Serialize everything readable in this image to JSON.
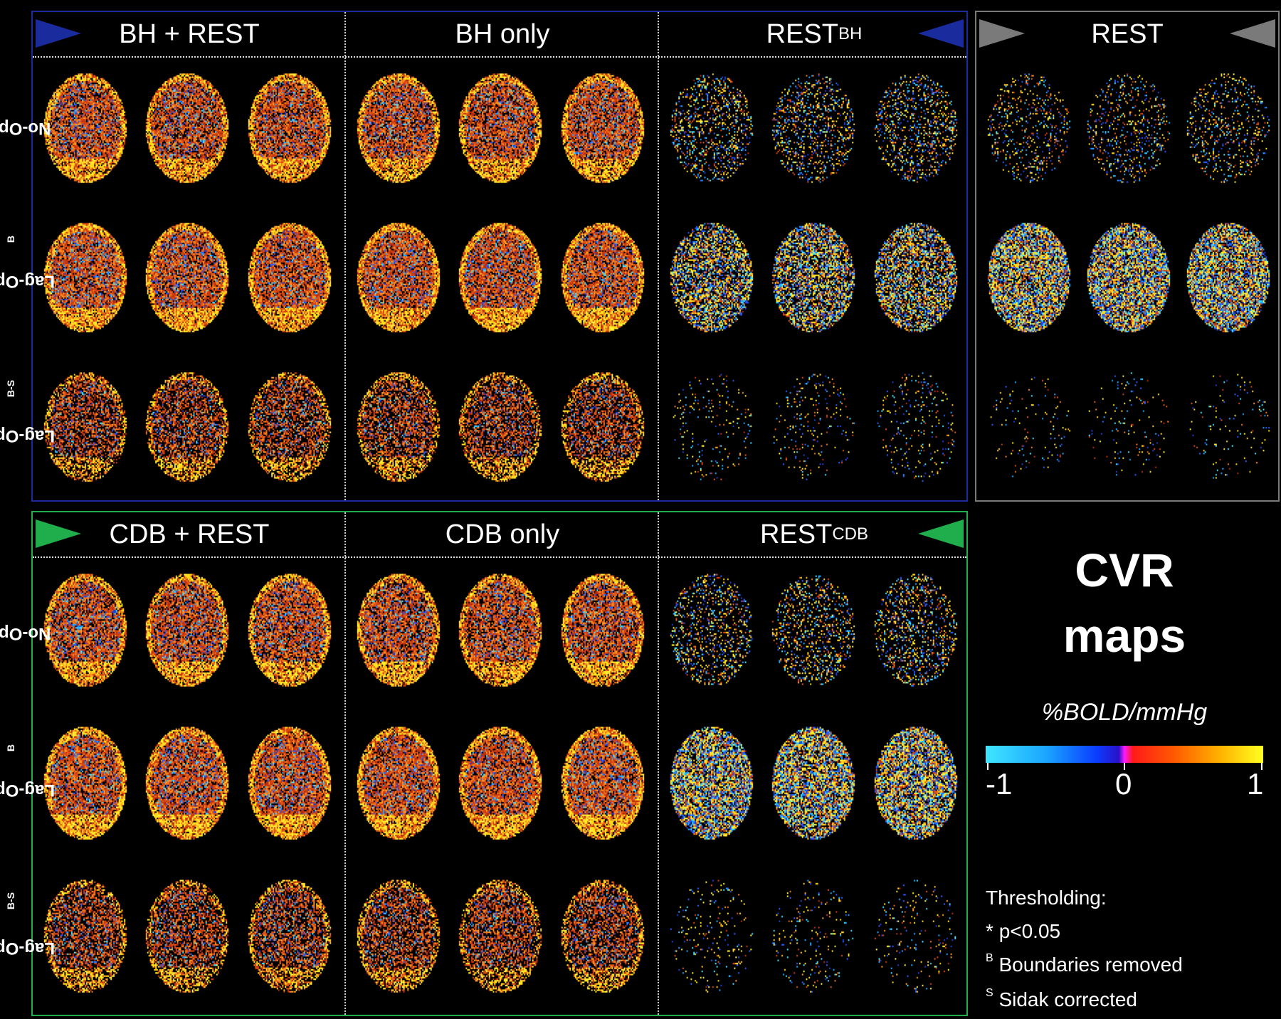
{
  "bh_panel": {
    "headers": [
      {
        "text": "BH + REST",
        "sub": ""
      },
      {
        "text": "BH only",
        "sub": ""
      },
      {
        "text": "REST",
        "sub": "BH"
      }
    ],
    "rows": [
      {
        "text": "No-Opt *",
        "sup": ""
      },
      {
        "text": "Lag-Opt *",
        "sup": "B"
      },
      {
        "text": "Lag-Opt *",
        "sup": "B-S"
      }
    ],
    "color": "#1a2b9e"
  },
  "rest_panel": {
    "header": "REST",
    "color": "#7a7a7a"
  },
  "cdb_panel": {
    "headers": [
      {
        "text": "CDB + REST",
        "sub": ""
      },
      {
        "text": "CDB only",
        "sub": ""
      },
      {
        "text": "REST",
        "sub": "CDB"
      }
    ],
    "rows": [
      {
        "text": "No-Opt *",
        "sup": ""
      },
      {
        "text": "Lag-Opt *",
        "sup": "B"
      },
      {
        "text": "Lag-Opt *",
        "sup": "B-S"
      }
    ],
    "color": "#1fae4b"
  },
  "legend": {
    "title_line1": "CVR",
    "title_line2": "maps",
    "units": "%BOLD/mmHg",
    "ticks": [
      "-1",
      "0",
      "1"
    ],
    "thresholding_title": "Thresholding:",
    "items": [
      {
        "mark": "*",
        "text": "p<0.05"
      },
      {
        "mark": "B",
        "text": "Boundaries removed"
      },
      {
        "mark": "S",
        "text": "Sidak corrected"
      }
    ]
  }
}
